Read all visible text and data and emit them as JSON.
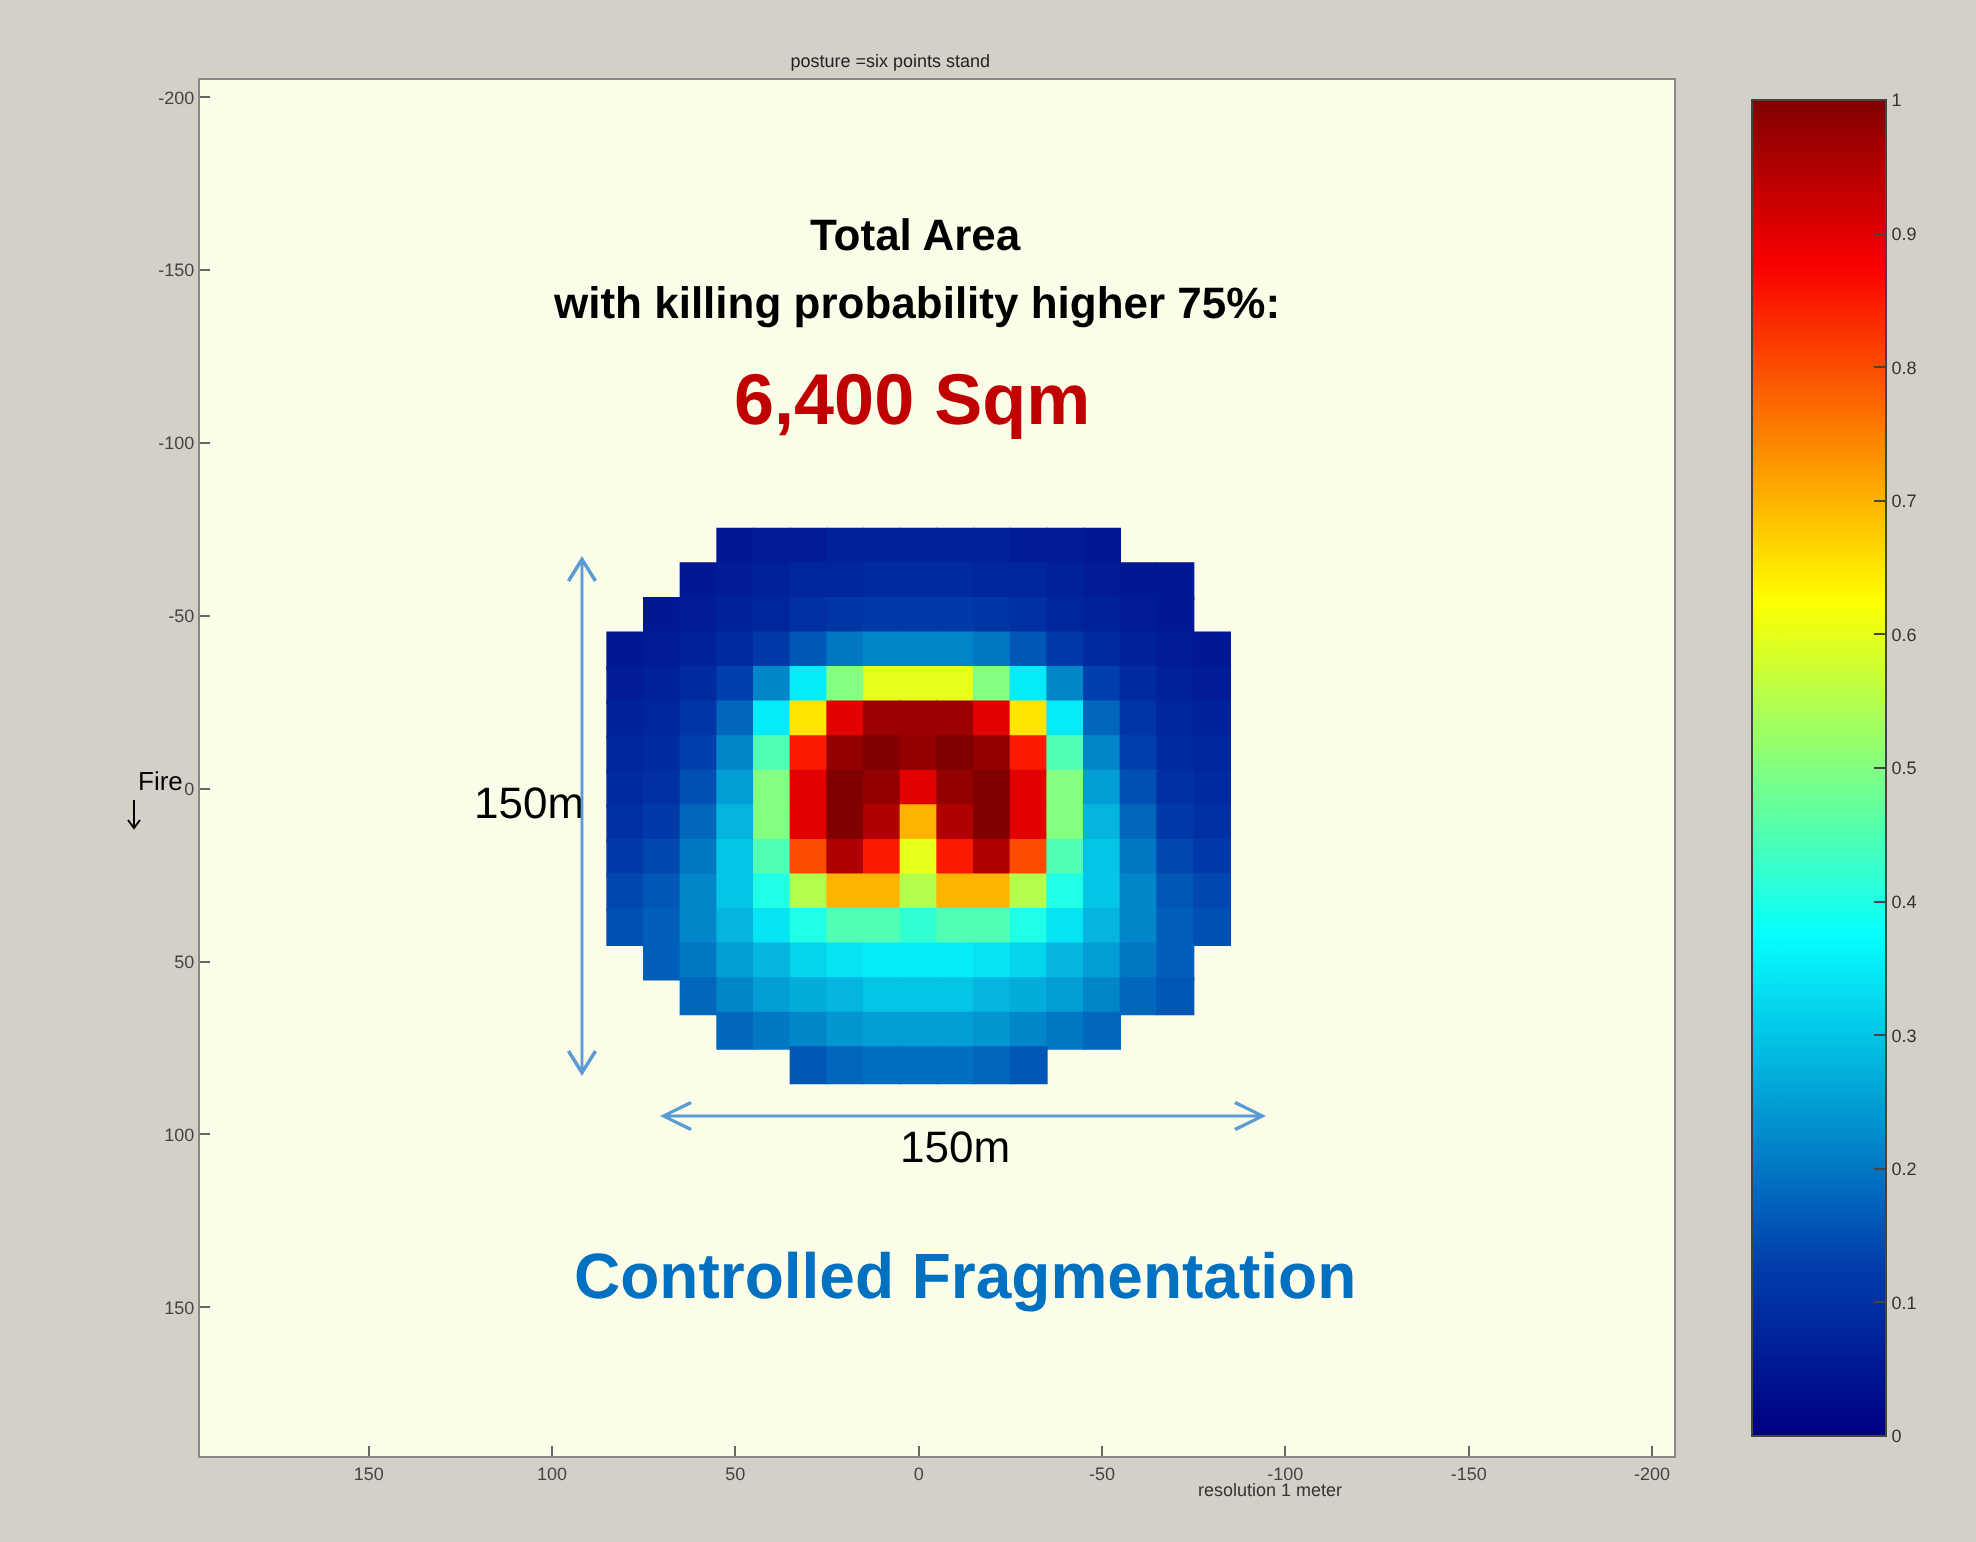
{
  "chart_data": {
    "type": "scatter",
    "marker": "square",
    "title": "posture =six points stand",
    "xlabel": "resolution 1 meter",
    "annotations": [
      "Total Area",
      "with killing probability higher 75%:",
      "6,400 Sqm",
      "150m",
      "150m",
      "Controlled Fragmentation",
      "Fire"
    ],
    "x": [
      50,
      40,
      30,
      20,
      10,
      0,
      -10,
      -20,
      -30,
      -40,
      -50,
      60,
      50,
      40,
      30,
      20,
      10,
      0,
      -10,
      -20,
      -30,
      -40,
      -50,
      -60,
      -70,
      70,
      60,
      50,
      40,
      30,
      20,
      10,
      0,
      -10,
      -20,
      -30,
      -40,
      -50,
      -60,
      -70,
      80,
      70,
      60,
      50,
      40,
      30,
      20,
      10,
      0,
      -10,
      -20,
      -30,
      -40,
      -50,
      -60,
      -70,
      -80,
      80,
      70,
      60,
      50,
      40,
      30,
      20,
      10,
      0,
      -10,
      -20,
      -30,
      -40,
      -50,
      -60,
      -70,
      -80,
      80,
      70,
      60,
      50,
      40,
      30,
      20,
      10,
      0,
      -10,
      -20,
      -30,
      -40,
      -50,
      -60,
      -70,
      -80,
      80,
      70,
      60,
      50,
      40,
      30,
      20,
      10,
      0,
      -10,
      -20,
      -30,
      -40,
      -50,
      -60,
      -70,
      -80,
      80,
      70,
      60,
      50,
      40,
      30,
      20,
      10,
      0,
      -10,
      -20,
      -30,
      -40,
      -50,
      -60,
      -70,
      -80,
      80,
      70,
      60,
      50,
      40,
      30,
      20,
      10,
      0,
      -10,
      -20,
      -30,
      -40,
      -50,
      -60,
      -70,
      -80,
      80,
      70,
      60,
      50,
      40,
      30,
      20,
      10,
      0,
      -10,
      -20,
      -30,
      -40,
      -50,
      -60,
      -70,
      -80,
      80,
      70,
      60,
      50,
      40,
      30,
      20,
      10,
      0,
      -10,
      -20,
      -30,
      -40,
      -50,
      -60,
      -70,
      -80,
      80,
      70,
      60,
      50,
      40,
      30,
      20,
      10,
      0,
      -10,
      -20,
      -30,
      -40,
      -50,
      -60,
      -70,
      -80,
      70,
      60,
      50,
      40,
      30,
      20,
      10,
      0,
      -10,
      -20,
      -30,
      -40,
      -50,
      -60,
      -70,
      60,
      50,
      40,
      30,
      20,
      10,
      0,
      -10,
      -20,
      -30,
      -40,
      -50,
      -60,
      -70,
      50,
      40,
      30,
      20,
      10,
      0,
      -10,
      -20,
      -30,
      -40,
      -50,
      30,
      20,
      10,
      0,
      -10,
      -20,
      -30
    ],
    "values": [
      -70,
      -70,
      -70,
      -70,
      -70,
      -70,
      -70,
      -70,
      -70,
      -70,
      -70,
      -60,
      -60,
      -60,
      -60,
      -60,
      -60,
      -60,
      -60,
      -60,
      -60,
      -60,
      -60,
      -60,
      -60,
      -50,
      -50,
      -50,
      -50,
      -50,
      -50,
      -50,
      -50,
      -50,
      -50,
      -50,
      -50,
      -50,
      -50,
      -50,
      -40,
      -40,
      -40,
      -40,
      -40,
      -40,
      -40,
      -40,
      -40,
      -40,
      -40,
      -40,
      -40,
      -40,
      -40,
      -40,
      -40,
      -30,
      -30,
      -30,
      -30,
      -30,
      -30,
      -30,
      -30,
      -30,
      -30,
      -30,
      -30,
      -30,
      -30,
      -30,
      -30,
      -30,
      -20,
      -20,
      -20,
      -20,
      -20,
      -20,
      -20,
      -20,
      -20,
      -20,
      -20,
      -20,
      -20,
      -20,
      -20,
      -20,
      -20,
      -10,
      -10,
      -10,
      -10,
      -10,
      -10,
      -10,
      -10,
      -10,
      -10,
      -10,
      -10,
      -10,
      -10,
      -10,
      -10,
      -10,
      0,
      0,
      0,
      0,
      0,
      0,
      0,
      0,
      0,
      0,
      0,
      0,
      0,
      0,
      0,
      0,
      0,
      10,
      10,
      10,
      10,
      10,
      10,
      10,
      10,
      10,
      10,
      10,
      10,
      10,
      10,
      10,
      10,
      10,
      20,
      20,
      20,
      20,
      20,
      20,
      20,
      20,
      20,
      20,
      20,
      20,
      20,
      20,
      20,
      20,
      20,
      30,
      30,
      30,
      30,
      30,
      30,
      30,
      30,
      30,
      30,
      30,
      30,
      30,
      30,
      30,
      30,
      30,
      40,
      40,
      40,
      40,
      40,
      40,
      40,
      40,
      40,
      40,
      40,
      40,
      40,
      40,
      40,
      40,
      40,
      50,
      50,
      50,
      50,
      50,
      50,
      50,
      50,
      50,
      50,
      50,
      50,
      50,
      50,
      50,
      60,
      60,
      60,
      60,
      60,
      60,
      60,
      60,
      60,
      60,
      60,
      60,
      60,
      60,
      70,
      70,
      70,
      70,
      70,
      70,
      70,
      70,
      70,
      70,
      70,
      80,
      80,
      80,
      80,
      80,
      80,
      80
    ],
    "cvalues": [
      0.05,
      0.06,
      0.06,
      0.07,
      0.07,
      0.07,
      0.07,
      0.07,
      0.06,
      0.06,
      0.05,
      0.05,
      0.06,
      0.07,
      0.08,
      0.08,
      0.09,
      0.09,
      0.09,
      0.08,
      0.08,
      0.07,
      0.06,
      0.05,
      0.05,
      0.05,
      0.06,
      0.07,
      0.08,
      0.1,
      0.11,
      0.12,
      0.12,
      0.12,
      0.11,
      0.1,
      0.08,
      0.07,
      0.06,
      0.05,
      0.05,
      0.06,
      0.07,
      0.09,
      0.12,
      0.16,
      0.2,
      0.22,
      0.22,
      0.22,
      0.2,
      0.16,
      0.12,
      0.09,
      0.07,
      0.06,
      0.05,
      0.06,
      0.07,
      0.09,
      0.13,
      0.22,
      0.35,
      0.5,
      0.6,
      0.6,
      0.6,
      0.5,
      0.35,
      0.22,
      0.13,
      0.09,
      0.07,
      0.06,
      0.07,
      0.08,
      0.11,
      0.18,
      0.35,
      0.65,
      0.9,
      0.97,
      0.97,
      0.97,
      0.9,
      0.65,
      0.35,
      0.18,
      0.11,
      0.08,
      0.07,
      0.08,
      0.09,
      0.13,
      0.22,
      0.45,
      0.85,
      0.98,
      1.0,
      0.98,
      1.0,
      0.98,
      0.85,
      0.45,
      0.22,
      0.13,
      0.09,
      0.08,
      0.09,
      0.1,
      0.15,
      0.25,
      0.5,
      0.9,
      1.0,
      0.98,
      0.9,
      0.98,
      1.0,
      0.9,
      0.5,
      0.25,
      0.15,
      0.1,
      0.09,
      0.1,
      0.12,
      0.18,
      0.28,
      0.5,
      0.9,
      1.0,
      0.95,
      0.7,
      0.95,
      1.0,
      0.9,
      0.5,
      0.28,
      0.18,
      0.12,
      0.1,
      0.12,
      0.14,
      0.2,
      0.3,
      0.45,
      0.8,
      0.95,
      0.85,
      0.6,
      0.85,
      0.95,
      0.8,
      0.45,
      0.3,
      0.2,
      0.14,
      0.12,
      0.14,
      0.16,
      0.22,
      0.3,
      0.4,
      0.55,
      0.7,
      0.7,
      0.55,
      0.7,
      0.7,
      0.55,
      0.4,
      0.3,
      0.22,
      0.16,
      0.14,
      0.15,
      0.17,
      0.22,
      0.28,
      0.34,
      0.4,
      0.45,
      0.45,
      0.42,
      0.45,
      0.45,
      0.4,
      0.34,
      0.28,
      0.22,
      0.17,
      0.15,
      0.17,
      0.2,
      0.25,
      0.28,
      0.32,
      0.34,
      0.35,
      0.35,
      0.35,
      0.34,
      0.32,
      0.28,
      0.25,
      0.2,
      0.17,
      0.18,
      0.22,
      0.25,
      0.27,
      0.28,
      0.3,
      0.3,
      0.3,
      0.28,
      0.27,
      0.25,
      0.22,
      0.18,
      0.16,
      0.18,
      0.2,
      0.22,
      0.24,
      0.25,
      0.25,
      0.25,
      0.24,
      0.22,
      0.2,
      0.18,
      0.16,
      0.18,
      0.19,
      0.19,
      0.19,
      0.18,
      0.16
    ],
    "xlim": [
      196,
      -206
    ],
    "ylim": [
      193,
      -205
    ],
    "xticks": [
      150,
      100,
      50,
      0,
      -50,
      -100,
      -150,
      -200
    ],
    "yticks": [
      -200,
      -150,
      -100,
      -50,
      0,
      50,
      100,
      150
    ],
    "clim": [
      0,
      1
    ],
    "cticks": [
      0,
      0.1,
      0.2,
      0.3,
      0.4,
      0.5,
      0.6,
      0.7,
      0.8,
      0.9,
      1
    ],
    "grid": false
  }
}
